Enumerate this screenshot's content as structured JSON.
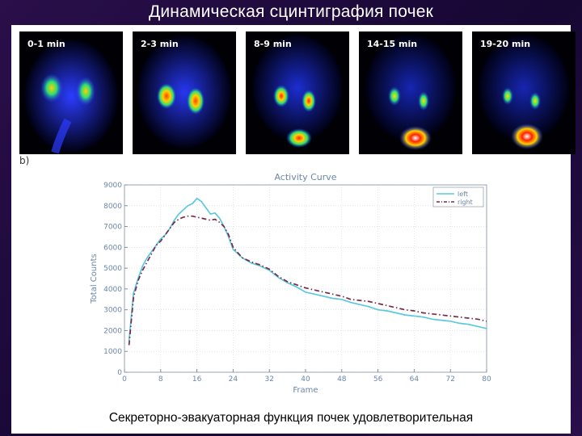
{
  "slide": {
    "title": "Динамическая сцинтиграфия почек",
    "caption": "Секреторно-эвакуаторная функция почек удовлетворительная",
    "panel_label": "b)"
  },
  "scans": [
    {
      "label": "0-1 min"
    },
    {
      "label": "2-3 min"
    },
    {
      "label": "8-9 min"
    },
    {
      "label": "14-15 min"
    },
    {
      "label": "19-20 min"
    }
  ],
  "chart_data": {
    "type": "line",
    "title": "Activity Curve",
    "xlabel": "Frame",
    "ylabel": "Total Counts",
    "xlim": [
      0,
      80
    ],
    "ylim": [
      0,
      9000
    ],
    "xticks": [
      0,
      8,
      16,
      24,
      32,
      40,
      48,
      56,
      64,
      72,
      80
    ],
    "yticks": [
      0,
      1000,
      2000,
      3000,
      4000,
      5000,
      6000,
      7000,
      8000,
      9000
    ],
    "grid": true,
    "legend_position": "top-right",
    "series": [
      {
        "name": "left",
        "color": "#5bc8e0",
        "x": [
          1,
          2,
          3,
          4,
          5,
          6,
          7,
          8,
          9,
          10,
          11,
          12,
          13,
          14,
          15,
          16,
          17,
          18,
          19,
          20,
          21,
          22,
          23,
          24,
          26,
          28,
          30,
          32,
          34,
          36,
          38,
          40,
          42,
          44,
          46,
          48,
          50,
          52,
          54,
          56,
          58,
          60,
          62,
          64,
          66,
          68,
          70,
          72,
          74,
          76,
          78,
          80
        ],
        "values": [
          1500,
          3800,
          4500,
          5100,
          5500,
          5800,
          6100,
          6400,
          6600,
          6900,
          7300,
          7600,
          7800,
          8000,
          8100,
          8350,
          8200,
          7900,
          7600,
          7650,
          7400,
          7000,
          6500,
          5900,
          5500,
          5250,
          5100,
          4900,
          4550,
          4300,
          4100,
          3850,
          3750,
          3650,
          3550,
          3500,
          3350,
          3250,
          3150,
          3000,
          2950,
          2850,
          2750,
          2700,
          2650,
          2550,
          2500,
          2450,
          2350,
          2300,
          2200,
          2100
        ]
      },
      {
        "name": "right",
        "color": "#7a2a45",
        "x": [
          1,
          2,
          3,
          4,
          5,
          6,
          7,
          8,
          9,
          10,
          11,
          12,
          13,
          14,
          15,
          16,
          17,
          18,
          19,
          20,
          21,
          22,
          23,
          24,
          26,
          28,
          30,
          32,
          34,
          36,
          38,
          40,
          42,
          44,
          46,
          48,
          50,
          52,
          54,
          56,
          58,
          60,
          62,
          64,
          66,
          68,
          70,
          72,
          74,
          76,
          78,
          80
        ],
        "values": [
          1300,
          3600,
          4400,
          4900,
          5300,
          5700,
          6100,
          6300,
          6600,
          6900,
          7200,
          7350,
          7450,
          7500,
          7500,
          7450,
          7400,
          7350,
          7300,
          7350,
          7200,
          7000,
          6600,
          6000,
          5500,
          5300,
          5150,
          4950,
          4600,
          4350,
          4200,
          4050,
          3950,
          3850,
          3750,
          3650,
          3500,
          3450,
          3400,
          3300,
          3200,
          3100,
          3000,
          2950,
          2850,
          2800,
          2750,
          2700,
          2650,
          2600,
          2550,
          2450
        ]
      }
    ]
  }
}
